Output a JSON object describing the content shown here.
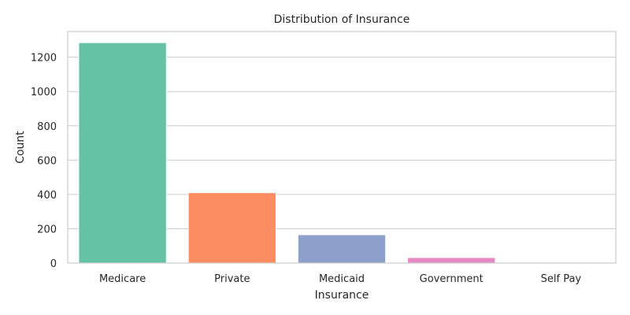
{
  "chart_data": {
    "type": "bar",
    "title": "Distribution of Insurance",
    "xlabel": "Insurance",
    "ylabel": "Count",
    "categories": [
      "Medicare",
      "Private",
      "Medicaid",
      "Government",
      "Self Pay"
    ],
    "values": [
      1285,
      410,
      165,
      32,
      5
    ],
    "colors": [
      "#66c2a5",
      "#fc8d62",
      "#8da0cb",
      "#e78ac3",
      "#a6d854"
    ],
    "ylim": [
      0,
      1350
    ],
    "yticks": [
      0,
      200,
      400,
      600,
      800,
      1000,
      1200
    ],
    "grid": true,
    "legend": "none"
  }
}
